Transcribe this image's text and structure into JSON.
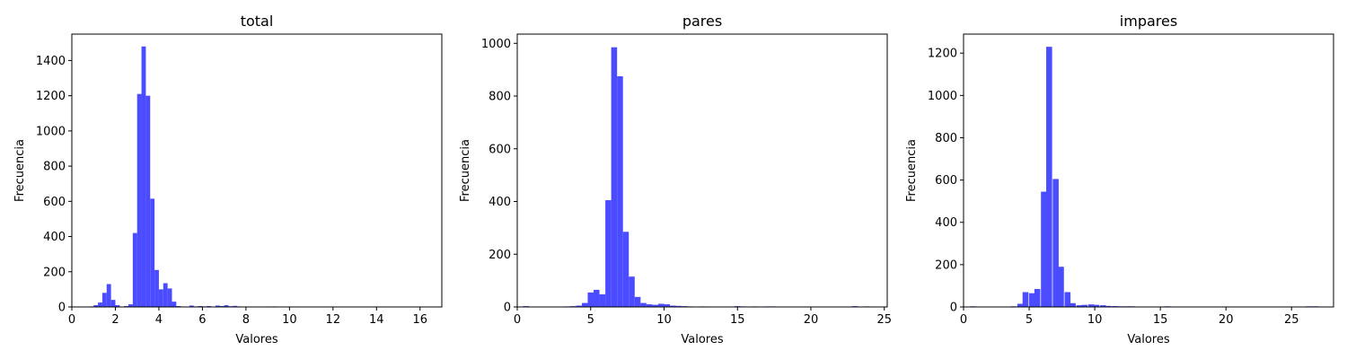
{
  "chart_data": [
    {
      "type": "bar",
      "title": "total",
      "xlabel": "Valores",
      "ylabel": "Frecuencia",
      "xlim": [
        0,
        17
      ],
      "ylim": [
        0,
        1550
      ],
      "xticks": [
        0,
        2,
        4,
        6,
        8,
        10,
        12,
        14,
        16
      ],
      "yticks": [
        0,
        200,
        400,
        600,
        800,
        1000,
        1200,
        1400
      ],
      "color": "#4b4bff",
      "bin_width": 0.2,
      "bins": [
        [
          0.0,
          2
        ],
        [
          0.8,
          3
        ],
        [
          1.0,
          10
        ],
        [
          1.2,
          25
        ],
        [
          1.4,
          80
        ],
        [
          1.6,
          130
        ],
        [
          1.8,
          40
        ],
        [
          2.0,
          10
        ],
        [
          2.2,
          2
        ],
        [
          2.4,
          5
        ],
        [
          2.6,
          15
        ],
        [
          2.8,
          420
        ],
        [
          3.0,
          1210
        ],
        [
          3.2,
          1480
        ],
        [
          3.4,
          1200
        ],
        [
          3.6,
          615
        ],
        [
          3.8,
          210
        ],
        [
          4.0,
          100
        ],
        [
          4.2,
          135
        ],
        [
          4.4,
          105
        ],
        [
          4.6,
          30
        ],
        [
          4.8,
          5
        ],
        [
          5.0,
          2
        ],
        [
          5.4,
          8
        ],
        [
          5.6,
          3
        ],
        [
          5.8,
          5
        ],
        [
          6.0,
          3
        ],
        [
          6.2,
          5
        ],
        [
          6.6,
          8
        ],
        [
          6.8,
          5
        ],
        [
          7.0,
          10
        ],
        [
          7.2,
          4
        ],
        [
          7.4,
          6
        ],
        [
          7.6,
          3
        ],
        [
          7.8,
          2
        ],
        [
          8.8,
          2
        ],
        [
          9.2,
          3
        ],
        [
          10.0,
          1
        ],
        [
          12.0,
          1
        ],
        [
          16.0,
          1
        ]
      ]
    },
    {
      "type": "bar",
      "title": "pares",
      "xlabel": "Valores",
      "ylabel": "Frecuencia",
      "xlim": [
        0,
        25.2
      ],
      "ylim": [
        0,
        1035
      ],
      "xticks": [
        0,
        5,
        10,
        15,
        20,
        25
      ],
      "yticks": [
        0,
        200,
        400,
        600,
        800,
        1000
      ],
      "color": "#4b4bff",
      "bin_width": 0.4,
      "bins": [
        [
          0.4,
          3
        ],
        [
          3.2,
          2
        ],
        [
          3.6,
          3
        ],
        [
          4.0,
          5
        ],
        [
          4.4,
          15
        ],
        [
          4.8,
          55
        ],
        [
          5.2,
          65
        ],
        [
          5.6,
          48
        ],
        [
          6.0,
          405
        ],
        [
          6.4,
          985
        ],
        [
          6.8,
          875
        ],
        [
          7.2,
          285
        ],
        [
          7.6,
          115
        ],
        [
          8.0,
          38
        ],
        [
          8.4,
          15
        ],
        [
          8.8,
          10
        ],
        [
          9.2,
          8
        ],
        [
          9.6,
          12
        ],
        [
          10.0,
          10
        ],
        [
          10.4,
          5
        ],
        [
          10.8,
          4
        ],
        [
          11.2,
          3
        ],
        [
          11.6,
          2
        ],
        [
          12.4,
          2
        ],
        [
          14.8,
          3
        ],
        [
          15.2,
          2
        ],
        [
          16.0,
          2
        ],
        [
          16.8,
          2
        ],
        [
          17.2,
          2
        ],
        [
          22.8,
          3
        ],
        [
          23.6,
          2
        ]
      ]
    },
    {
      "type": "bar",
      "title": "impares",
      "xlabel": "Valores",
      "ylabel": "Frecuencia",
      "xlim": [
        0,
        28.2
      ],
      "ylim": [
        0,
        1290
      ],
      "xticks": [
        0,
        5,
        10,
        15,
        20,
        25
      ],
      "yticks": [
        0,
        200,
        400,
        600,
        800,
        1000,
        1200
      ],
      "color": "#4b4bff",
      "bin_width": 0.45,
      "bins": [
        [
          0.5,
          3
        ],
        [
          2.3,
          2
        ],
        [
          3.2,
          2
        ],
        [
          3.6,
          3
        ],
        [
          4.1,
          15
        ],
        [
          4.5,
          70
        ],
        [
          5.0,
          65
        ],
        [
          5.4,
          85
        ],
        [
          5.9,
          545
        ],
        [
          6.3,
          1230
        ],
        [
          6.8,
          605
        ],
        [
          7.2,
          190
        ],
        [
          7.7,
          70
        ],
        [
          8.1,
          18
        ],
        [
          8.6,
          8
        ],
        [
          9.0,
          10
        ],
        [
          9.5,
          12
        ],
        [
          9.9,
          10
        ],
        [
          10.4,
          8
        ],
        [
          10.8,
          5
        ],
        [
          11.3,
          4
        ],
        [
          11.7,
          3
        ],
        [
          12.2,
          3
        ],
        [
          12.6,
          3
        ],
        [
          15.3,
          3
        ],
        [
          16.7,
          2
        ],
        [
          18.9,
          2
        ],
        [
          20.7,
          2
        ],
        [
          26.1,
          3
        ],
        [
          26.6,
          3
        ]
      ]
    }
  ]
}
